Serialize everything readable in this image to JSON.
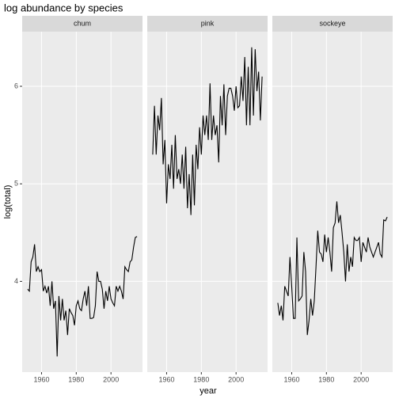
{
  "chart_data": {
    "type": "line",
    "title": "log abundance by species",
    "x_label": "year",
    "y_label": "log(total)",
    "x": [
      1952,
      1953,
      1954,
      1955,
      1956,
      1957,
      1958,
      1959,
      1960,
      1961,
      1962,
      1963,
      1964,
      1965,
      1966,
      1967,
      1968,
      1969,
      1970,
      1971,
      1972,
      1973,
      1974,
      1975,
      1976,
      1977,
      1978,
      1979,
      1980,
      1981,
      1982,
      1983,
      1984,
      1985,
      1986,
      1987,
      1988,
      1989,
      1990,
      1991,
      1992,
      1993,
      1994,
      1995,
      1996,
      1997,
      1998,
      1999,
      2000,
      2001,
      2002,
      2003,
      2004,
      2005,
      2006,
      2007,
      2008,
      2009,
      2010,
      2011,
      2012,
      2013,
      2014,
      2015
    ],
    "series": [
      {
        "name": "chum",
        "color": "#000000",
        "values": [
          3.92,
          3.9,
          4.2,
          4.25,
          4.38,
          4.1,
          4.15,
          4.1,
          4.12,
          3.9,
          3.95,
          3.88,
          3.95,
          3.75,
          4.0,
          3.72,
          3.8,
          3.23,
          3.85,
          3.6,
          3.82,
          3.6,
          3.7,
          3.45,
          3.72,
          3.68,
          3.65,
          3.55,
          3.75,
          3.8,
          3.72,
          3.7,
          3.82,
          3.9,
          3.75,
          3.95,
          3.62,
          3.62,
          3.63,
          3.75,
          4.1,
          4.0,
          4.0,
          3.92,
          3.72,
          3.9,
          3.8,
          3.95,
          3.82,
          3.78,
          3.75,
          3.95,
          3.9,
          3.95,
          3.9,
          3.82,
          4.15,
          4.12,
          4.1,
          4.2,
          4.22,
          4.35,
          4.45,
          4.46
        ]
      },
      {
        "name": "pink",
        "color": "#000000",
        "values": [
          5.3,
          5.8,
          5.3,
          5.7,
          5.55,
          5.88,
          5.2,
          5.45,
          4.8,
          5.2,
          5.05,
          5.4,
          4.95,
          5.5,
          5.05,
          5.15,
          5.0,
          5.3,
          4.95,
          5.38,
          4.75,
          5.1,
          4.68,
          5.3,
          4.78,
          5.4,
          5.15,
          5.58,
          5.3,
          5.7,
          5.5,
          5.7,
          5.45,
          6.03,
          5.45,
          5.7,
          5.5,
          5.6,
          5.22,
          5.9,
          5.6,
          6.02,
          5.5,
          5.9,
          5.98,
          5.98,
          5.9,
          5.75,
          6.0,
          5.78,
          5.8,
          6.1,
          5.85,
          6.3,
          5.6,
          6.2,
          5.6,
          6.4,
          5.7,
          6.38,
          5.95,
          6.15,
          5.65,
          6.1
        ]
      },
      {
        "name": "sockeye",
        "color": "#000000",
        "values": [
          3.78,
          3.65,
          3.75,
          3.6,
          3.95,
          3.9,
          3.85,
          4.25,
          3.95,
          3.62,
          3.62,
          4.45,
          3.8,
          3.82,
          3.85,
          4.3,
          4.1,
          3.45,
          3.6,
          3.82,
          3.65,
          3.8,
          4.15,
          4.52,
          4.3,
          4.28,
          4.2,
          4.48,
          4.3,
          4.45,
          4.3,
          4.1,
          4.55,
          4.6,
          4.82,
          4.6,
          4.68,
          4.5,
          4.3,
          4.0,
          4.38,
          4.1,
          4.25,
          4.15,
          4.45,
          4.42,
          4.42,
          4.45,
          4.2,
          4.4,
          4.35,
          4.3,
          4.45,
          4.35,
          4.3,
          4.25,
          4.3,
          4.35,
          4.4,
          4.28,
          4.25,
          4.63,
          4.62,
          4.66
        ]
      }
    ],
    "xlim": [
      1948.85,
      2018.15
    ],
    "ylim": [
      3.07,
      6.56
    ],
    "xticks": [
      1960,
      1980,
      2000
    ],
    "yticks": [
      4,
      5,
      6
    ],
    "grid": true
  }
}
